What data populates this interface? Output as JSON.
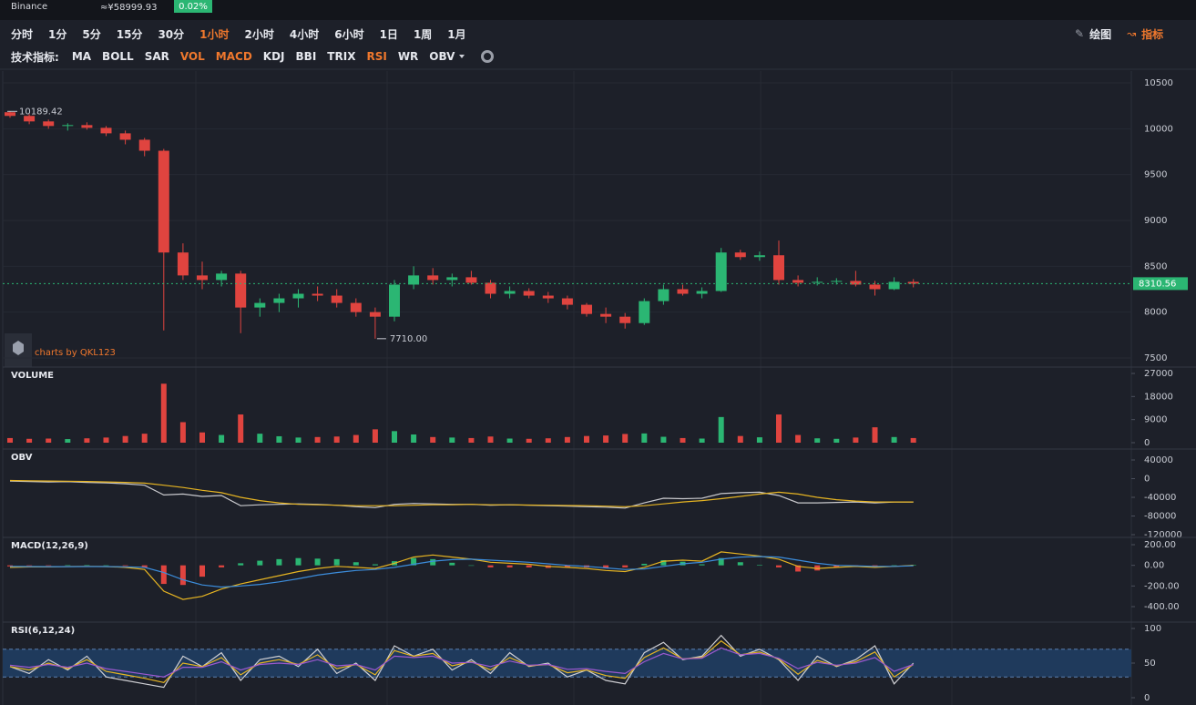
{
  "header": {
    "exchange": "Binance",
    "price": "≈¥58999.93",
    "change": "0.02%"
  },
  "toolbar": {
    "intervals": [
      {
        "label": "分时",
        "active": false
      },
      {
        "label": "1分",
        "active": false
      },
      {
        "label": "5分",
        "active": false
      },
      {
        "label": "15分",
        "active": false
      },
      {
        "label": "30分",
        "active": false
      },
      {
        "label": "1小时",
        "active": true
      },
      {
        "label": "2小时",
        "active": false
      },
      {
        "label": "4小时",
        "active": false
      },
      {
        "label": "6小时",
        "active": false
      },
      {
        "label": "1日",
        "active": false
      },
      {
        "label": "1周",
        "active": false
      },
      {
        "label": "1月",
        "active": false
      }
    ],
    "draw": {
      "label": "绘图",
      "active": false
    },
    "indicator": {
      "label": "指标",
      "active": true
    },
    "indicators_label": "技术指标:",
    "indicators": [
      {
        "label": "MA",
        "active": false
      },
      {
        "label": "BOLL",
        "active": false
      },
      {
        "label": "SAR",
        "active": false
      },
      {
        "label": "VOL",
        "active": true
      },
      {
        "label": "MACD",
        "active": true
      },
      {
        "label": "KDJ",
        "active": false
      },
      {
        "label": "BBI",
        "active": false
      },
      {
        "label": "TRIX",
        "active": false
      },
      {
        "label": "RSI",
        "active": true
      },
      {
        "label": "WR",
        "active": false
      },
      {
        "label": "OBV",
        "active": false
      }
    ]
  },
  "chart_data": [
    {
      "type": "candlestick",
      "watermark": "charts by QKL123",
      "up_color": "#2bb673",
      "down_color": "#e0443f",
      "grid": true,
      "ylim": [
        7450,
        10550
      ],
      "yticks": [
        7500,
        8000,
        8500,
        9000,
        9500,
        10000,
        10500
      ],
      "open": [
        10180,
        10140,
        10080,
        10030,
        10040,
        10010,
        9950,
        9880,
        9760,
        8650,
        8400,
        8350,
        8420,
        8050,
        8100,
        8150,
        8200,
        8180,
        8100,
        8000,
        7950,
        8300,
        8400,
        8350,
        8380,
        8320,
        8200,
        8230,
        8180,
        8150,
        8080,
        7980,
        7950,
        7880,
        8120,
        8250,
        8200,
        8230,
        8650,
        8600,
        8620,
        8350,
        8320,
        8330,
        8340,
        8300,
        8250,
        8330
      ],
      "high": [
        10189.42,
        10160,
        10100,
        10060,
        10070,
        10030,
        9980,
        9900,
        9780,
        8750,
        8550,
        8450,
        8450,
        8150,
        8200,
        8250,
        8280,
        8250,
        8150,
        8050,
        8350,
        8500,
        8480,
        8420,
        8450,
        8350,
        8280,
        8260,
        8220,
        8180,
        8100,
        8050,
        7990,
        8150,
        8300,
        8300,
        8270,
        8700,
        8680,
        8660,
        8780,
        8400,
        8380,
        8370,
        8450,
        8340,
        8380,
        8360
      ],
      "low": [
        10120,
        10050,
        10000,
        9980,
        9990,
        9920,
        9830,
        9700,
        7800,
        8350,
        8250,
        8280,
        7770,
        7950,
        8000,
        8050,
        8120,
        8050,
        7950,
        7710,
        7900,
        8250,
        8300,
        8280,
        8300,
        8150,
        8150,
        8150,
        8100,
        8030,
        7950,
        7880,
        7820,
        7860,
        8080,
        8180,
        8150,
        8220,
        8570,
        8560,
        8300,
        8280,
        8290,
        8300,
        8280,
        8180,
        8240,
        8270
      ],
      "close": [
        10140,
        10080,
        10030,
        10040,
        10010,
        9950,
        9880,
        9760,
        8650,
        8400,
        8350,
        8420,
        8050,
        8100,
        8150,
        8200,
        8180,
        8100,
        8000,
        7950,
        8300,
        8400,
        8350,
        8380,
        8320,
        8200,
        8230,
        8180,
        8150,
        8080,
        7980,
        7950,
        7880,
        8120,
        8250,
        8200,
        8230,
        8650,
        8600,
        8620,
        8350,
        8320,
        8330,
        8340,
        8300,
        8250,
        8330,
        8310.56
      ],
      "high_label": 10189.42,
      "low_label": {
        "value": 7710,
        "label": "7710.00"
      },
      "last_price": 8310.56
    },
    {
      "type": "bar",
      "title": "VOLUME",
      "up_color": "#2bb673",
      "down_color": "#e0443f",
      "grid": false,
      "ylim": [
        0,
        27000
      ],
      "yticks": [
        0,
        9000,
        18000,
        27000
      ],
      "values": [
        1800,
        1500,
        1600,
        1400,
        1700,
        2000,
        2600,
        3500,
        23000,
        8000,
        4000,
        3000,
        11000,
        3500,
        2500,
        2000,
        2200,
        2400,
        3000,
        5200,
        4500,
        3200,
        2200,
        2000,
        1800,
        2400,
        1600,
        1500,
        1700,
        2200,
        2600,
        2800,
        3400,
        3600,
        2300,
        1800,
        1600,
        10000,
        2600,
        2100,
        11000,
        3000,
        1700,
        1500,
        2000,
        6000,
        2200,
        1800
      ]
    },
    {
      "type": "line",
      "title": "OBV",
      "grid": false,
      "ylim": [
        -120000,
        40000
      ],
      "yticks": [
        -120000,
        -80000,
        -40000,
        0,
        40000
      ],
      "series": [
        {
          "color": "#c8c8cc",
          "values": [
            -5000,
            -6000,
            -7000,
            -6500,
            -8000,
            -9000,
            -11000,
            -14000,
            -35000,
            -33000,
            -38000,
            -36000,
            -58000,
            -56000,
            -55000,
            -54000,
            -55000,
            -57000,
            -60000,
            -62000,
            -55000,
            -53000,
            -54000,
            -55000,
            -55000,
            -57000,
            -56000,
            -57000,
            -58000,
            -59000,
            -60000,
            -61000,
            -63000,
            -52000,
            -42000,
            -43000,
            -42000,
            -32000,
            -30000,
            -29000,
            -36000,
            -52000,
            -52000,
            -51000,
            -50000,
            -52000,
            -50000,
            -50000
          ]
        },
        {
          "color": "#e6b422",
          "values": [
            -4000,
            -4500,
            -5000,
            -5500,
            -6000,
            -7000,
            -8000,
            -9500,
            -14000,
            -19000,
            -25000,
            -30000,
            -40000,
            -47000,
            -52000,
            -55000,
            -56000,
            -57000,
            -58000,
            -58000,
            -58000,
            -57000,
            -56000,
            -56000,
            -55000,
            -56000,
            -56000,
            -56500,
            -57000,
            -57500,
            -58000,
            -59000,
            -60000,
            -58000,
            -54000,
            -50000,
            -47000,
            -43000,
            -38000,
            -33000,
            -29000,
            -33000,
            -40000,
            -45000,
            -48000,
            -50000,
            -50000,
            -50000
          ]
        }
      ]
    },
    {
      "type": "line",
      "title": "MACD(12,26,9)",
      "up_color": "#2bb673",
      "down_color": "#e0443f",
      "grid": false,
      "ylim": [
        -400,
        200
      ],
      "yticks": [
        {
          "value": -400,
          "label": "-400.00"
        },
        {
          "value": -200,
          "label": "-200.00"
        },
        {
          "value": 0,
          "label": "0.00"
        },
        {
          "value": 200,
          "label": "200.00"
        }
      ],
      "series": [
        {
          "type": "bar",
          "values": [
            -10,
            -3,
            -2,
            1,
            2,
            0,
            -6,
            -20,
            -180,
            -190,
            -110,
            -20,
            20,
            45,
            60,
            70,
            65,
            60,
            30,
            10,
            40,
            70,
            60,
            25,
            0,
            -20,
            -20,
            -20,
            -25,
            -20,
            -20,
            -25,
            -20,
            15,
            50,
            35,
            10,
            70,
            30,
            5,
            -20,
            -60,
            -50,
            -20,
            -5,
            -10,
            0,
            5
          ]
        },
        {
          "type": "line",
          "color": "#e6b422",
          "values": [
            -20,
            -15,
            -15,
            -12,
            -10,
            -12,
            -20,
            -40,
            -250,
            -330,
            -300,
            -230,
            -180,
            -140,
            -100,
            -60,
            -30,
            -10,
            -20,
            -30,
            20,
            80,
            100,
            80,
            60,
            30,
            20,
            10,
            -10,
            -20,
            -30,
            -50,
            -60,
            -20,
            40,
            50,
            40,
            130,
            110,
            90,
            60,
            -10,
            -30,
            -20,
            -10,
            -20,
            -10,
            0
          ]
        },
        {
          "type": "line",
          "color": "#3c8ddc",
          "values": [
            -10,
            -12,
            -13,
            -13,
            -12,
            -12,
            -14,
            -20,
            -70,
            -140,
            -190,
            -210,
            -200,
            -185,
            -160,
            -130,
            -95,
            -70,
            -50,
            -40,
            -20,
            10,
            40,
            55,
            60,
            50,
            40,
            30,
            15,
            0,
            -10,
            -25,
            -40,
            -35,
            -10,
            15,
            30,
            60,
            80,
            85,
            80,
            50,
            20,
            0,
            -5,
            -10,
            -10,
            -5
          ]
        }
      ]
    },
    {
      "type": "line",
      "title": "RSI(6,12,24)",
      "grid": false,
      "band": [
        30,
        70
      ],
      "band_color": "#1f3a5c",
      "ylim": [
        0,
        100
      ],
      "yticks": [
        0,
        50,
        100
      ],
      "series": [
        {
          "color": "#d0d0d4",
          "values": [
            45,
            35,
            55,
            40,
            60,
            30,
            25,
            20,
            15,
            60,
            45,
            65,
            25,
            55,
            60,
            45,
            70,
            35,
            50,
            25,
            75,
            60,
            70,
            40,
            55,
            35,
            65,
            45,
            50,
            30,
            40,
            25,
            20,
            65,
            80,
            55,
            60,
            90,
            60,
            70,
            55,
            25,
            60,
            45,
            55,
            75,
            20,
            50
          ]
        },
        {
          "color": "#e6b422",
          "values": [
            45,
            40,
            50,
            42,
            55,
            38,
            33,
            28,
            22,
            50,
            45,
            58,
            33,
            50,
            55,
            48,
            62,
            42,
            48,
            33,
            68,
            60,
            64,
            46,
            52,
            40,
            58,
            46,
            48,
            36,
            40,
            32,
            28,
            58,
            72,
            56,
            58,
            82,
            62,
            66,
            56,
            34,
            54,
            46,
            52,
            66,
            30,
            48
          ]
        },
        {
          "color": "#9b59d0",
          "values": [
            47,
            44,
            48,
            44,
            50,
            42,
            38,
            34,
            30,
            44,
            44,
            52,
            40,
            48,
            50,
            48,
            55,
            46,
            48,
            40,
            60,
            58,
            60,
            50,
            51,
            45,
            53,
            47,
            48,
            41,
            42,
            38,
            35,
            52,
            64,
            56,
            57,
            72,
            62,
            64,
            57,
            42,
            51,
            47,
            50,
            58,
            38,
            48
          ]
        }
      ]
    }
  ]
}
